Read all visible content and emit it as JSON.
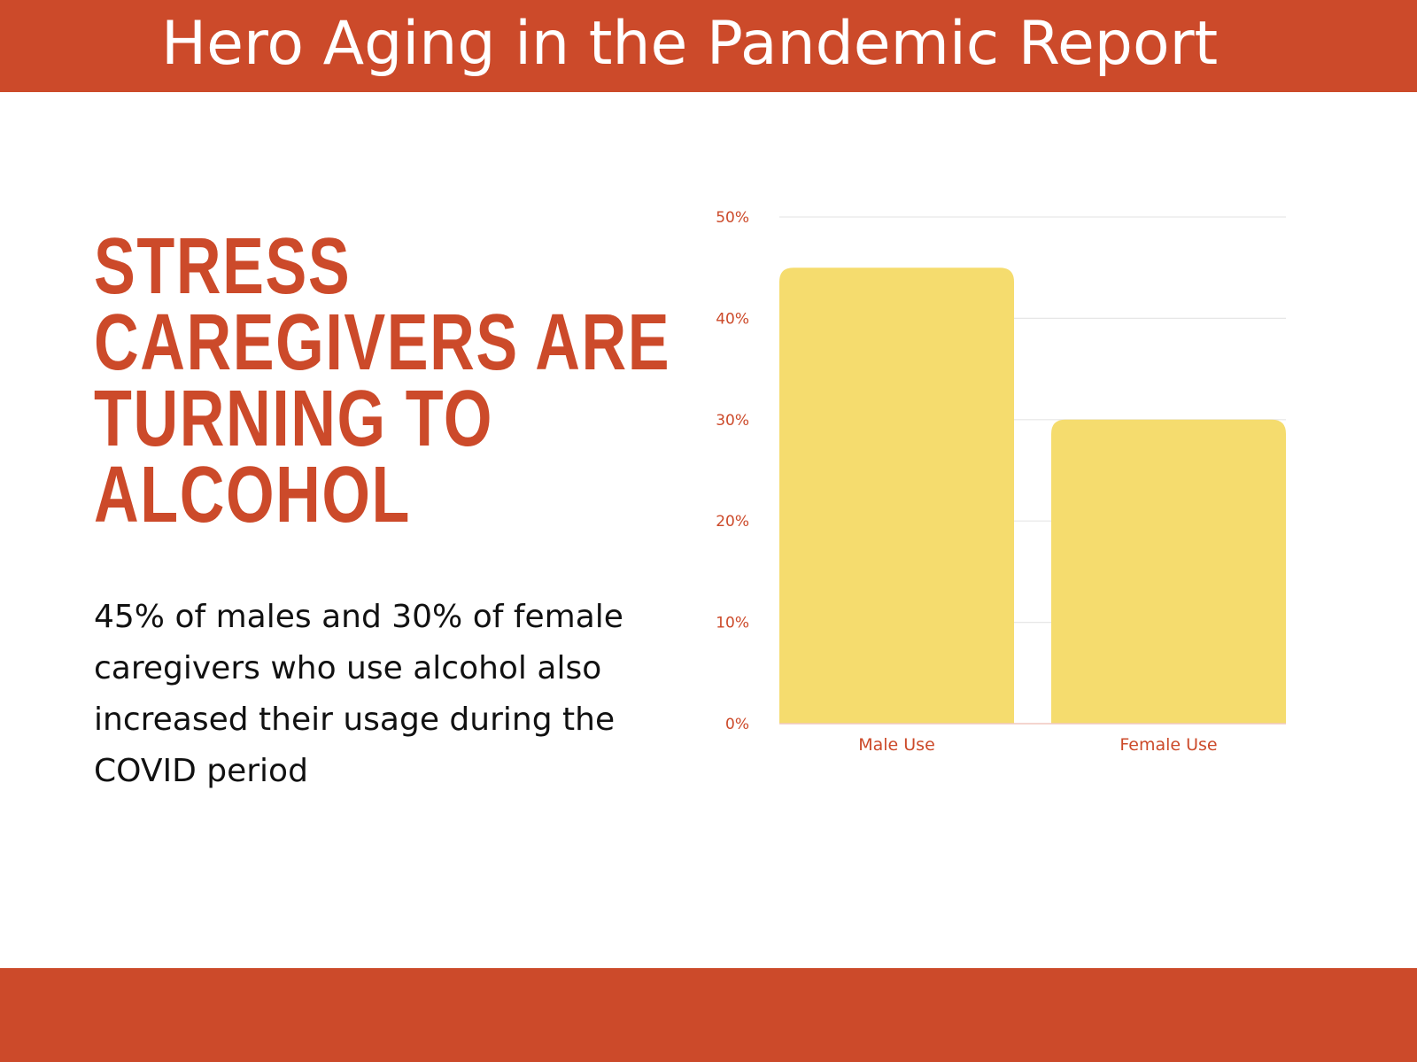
{
  "header": {
    "title": "Hero Aging in the Pandemic Report"
  },
  "headline": {
    "lines": [
      "STRESS",
      "CAREGIVERS ARE",
      "TURNING TO",
      "ALCOHOL"
    ]
  },
  "body": {
    "text": "45% of males and 30% of female caregivers who use alcohol also increased their usage during the COVID period"
  },
  "colors": {
    "accent": "#cc4a2a",
    "bar": "#f5dc6e",
    "grid": "#e6e6e6",
    "body_text": "#111111"
  },
  "chart_data": {
    "type": "bar",
    "categories": [
      "Male Use",
      "Female Use"
    ],
    "values": [
      45,
      30
    ],
    "ylim": [
      0,
      50
    ],
    "yticks": [
      0,
      10,
      20,
      30,
      40,
      50
    ],
    "ytick_labels": [
      "0%",
      "10%",
      "20%",
      "30%",
      "40%",
      "50%"
    ],
    "title": "",
    "xlabel": "",
    "ylabel": "",
    "grid": true,
    "legend": "none"
  }
}
